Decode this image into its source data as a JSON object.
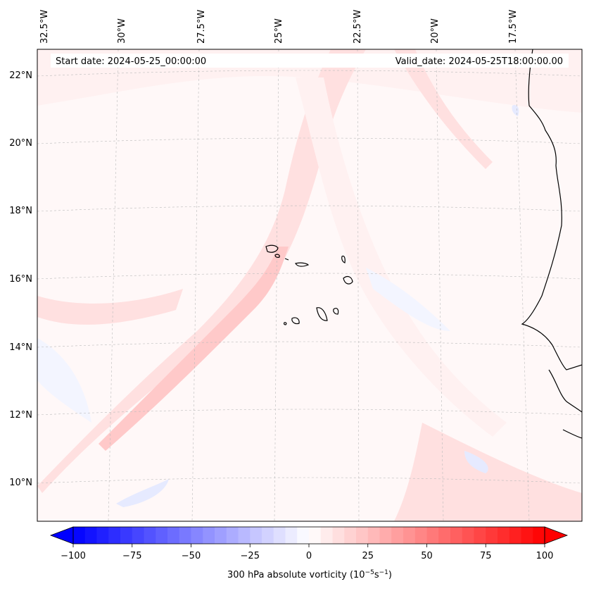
{
  "header": {
    "start_date": "Start date: 2024-05-25_00:00:00",
    "valid_date": "Valid_date: 2024-05-25T18:00:00.00"
  },
  "map": {
    "lon_labels": [
      "32.5°W",
      "30°W",
      "27.5°W",
      "25°W",
      "22.5°W",
      "20°W",
      "17.5°W"
    ],
    "lat_labels": [
      "22°N",
      "20°N",
      "18°N",
      "16°N",
      "14°N",
      "12°N",
      "10°N"
    ],
    "field_colors": {
      "strong_positive": "#ffc9c9",
      "positive": "#ffe0e0",
      "weak_positive": "#fff1f1",
      "background": "#fff8f8",
      "weak_negative": "#f3f5ff",
      "negative": "#e6eaff"
    }
  },
  "colorbar": {
    "ticks": [
      "−100",
      "−75",
      "−50",
      "−25",
      "0",
      "25",
      "50",
      "75",
      "100"
    ],
    "label_main": "300 hPa absolute vorticity (10",
    "label_exp1": "−5",
    "label_mid": "s",
    "label_exp2": "−1",
    "label_end": ")",
    "min_color": "#0000ff",
    "mid_color": "#ffffff",
    "max_color": "#ff0000",
    "range": [
      -100,
      100
    ]
  }
}
